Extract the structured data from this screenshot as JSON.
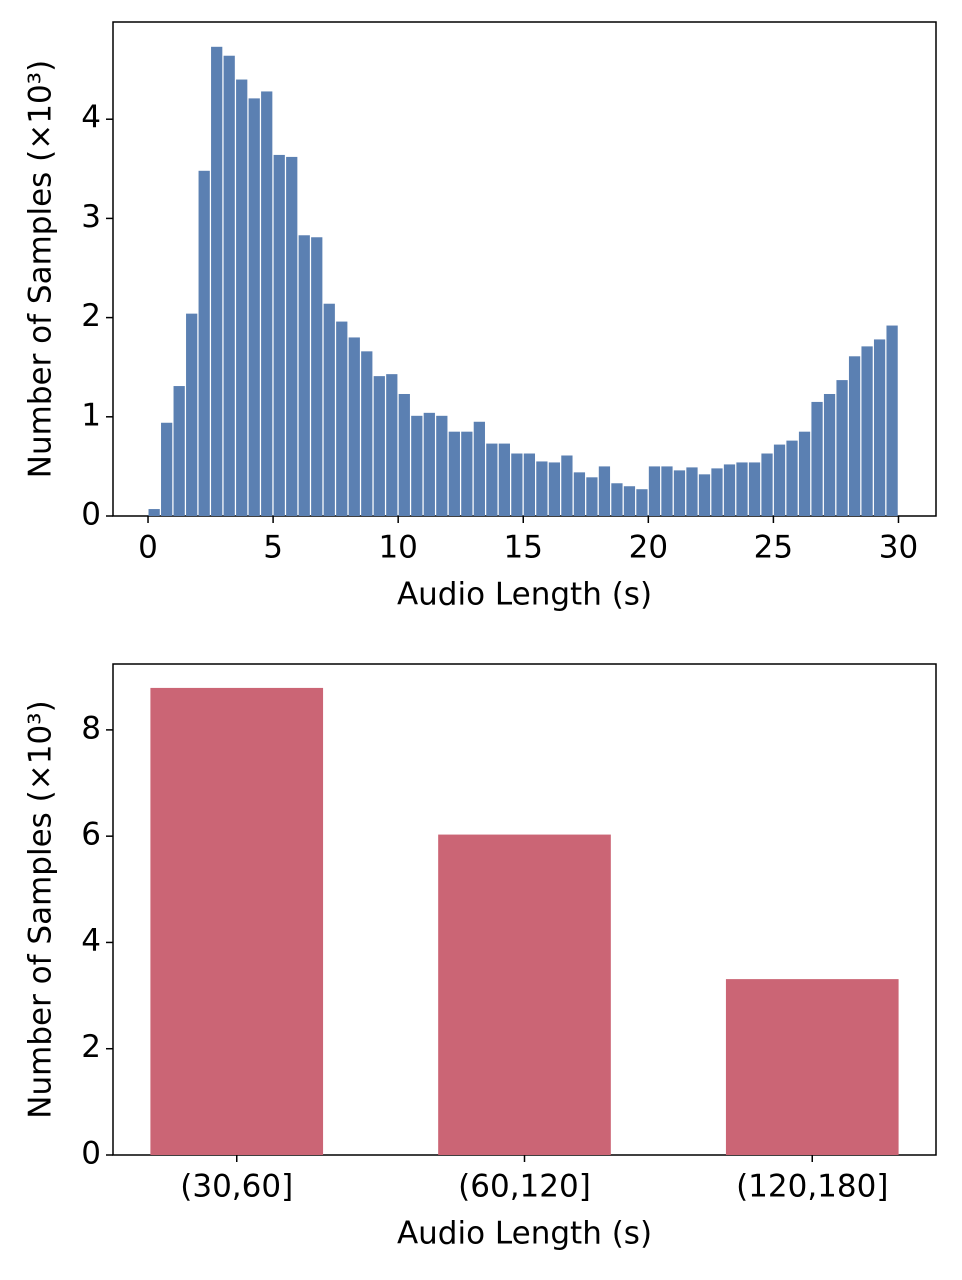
{
  "chart_data": [
    {
      "type": "histogram",
      "xlabel": "Audio Length (s)",
      "ylabel": "Number of Samples (×10³)",
      "color": "#5b80b2",
      "bins": [
        0,
        0.5,
        1,
        1.5,
        2,
        2.5,
        3,
        3.5,
        4,
        4.5,
        5,
        5.5,
        6,
        6.5,
        7,
        7.5,
        8,
        8.5,
        9,
        9.5,
        10,
        10.5,
        11,
        11.5,
        12,
        12.5,
        13,
        13.5,
        14,
        14.5,
        15,
        15.5,
        16,
        16.5,
        17,
        17.5,
        18,
        18.5,
        19,
        19.5,
        20,
        20.5,
        21,
        21.5,
        22,
        22.5,
        23,
        23.5,
        24,
        24.5,
        25,
        25.5,
        26,
        26.5,
        27,
        27.5,
        28,
        28.5,
        29,
        29.5,
        30
      ],
      "values": [
        0.07,
        0.94,
        1.31,
        2.04,
        3.48,
        4.73,
        4.64,
        4.4,
        4.21,
        4.28,
        3.64,
        3.62,
        2.83,
        2.81,
        2.14,
        1.96,
        1.8,
        1.66,
        1.41,
        1.43,
        1.23,
        1.01,
        1.04,
        1.01,
        0.85,
        0.85,
        0.95,
        0.73,
        0.73,
        0.63,
        0.63,
        0.55,
        0.54,
        0.61,
        0.44,
        0.39,
        0.5,
        0.33,
        0.3,
        0.27,
        0.5,
        0.5,
        0.46,
        0.49,
        0.42,
        0.48,
        0.52,
        0.54,
        0.54,
        0.63,
        0.72,
        0.76,
        0.85,
        1.15,
        1.23,
        1.37,
        1.61,
        1.71,
        1.78,
        1.92
      ],
      "xlim": [
        -1.4,
        31.5
      ],
      "xticks": [
        0,
        5,
        10,
        15,
        20,
        25,
        30
      ],
      "ylim": [
        0,
        4.98
      ],
      "yticks": [
        0,
        1,
        2,
        3,
        4
      ]
    },
    {
      "type": "bar",
      "xlabel": "Audio Length (s)",
      "ylabel": "Number of Samples (×10³)",
      "color": "#cb6575",
      "categories": [
        "(30,60]",
        "(60,120]",
        "(120,180]"
      ],
      "values": [
        8.79,
        6.03,
        3.31
      ],
      "ylim": [
        0,
        9.24
      ],
      "yticks": [
        0,
        2,
        4,
        6,
        8
      ]
    }
  ]
}
